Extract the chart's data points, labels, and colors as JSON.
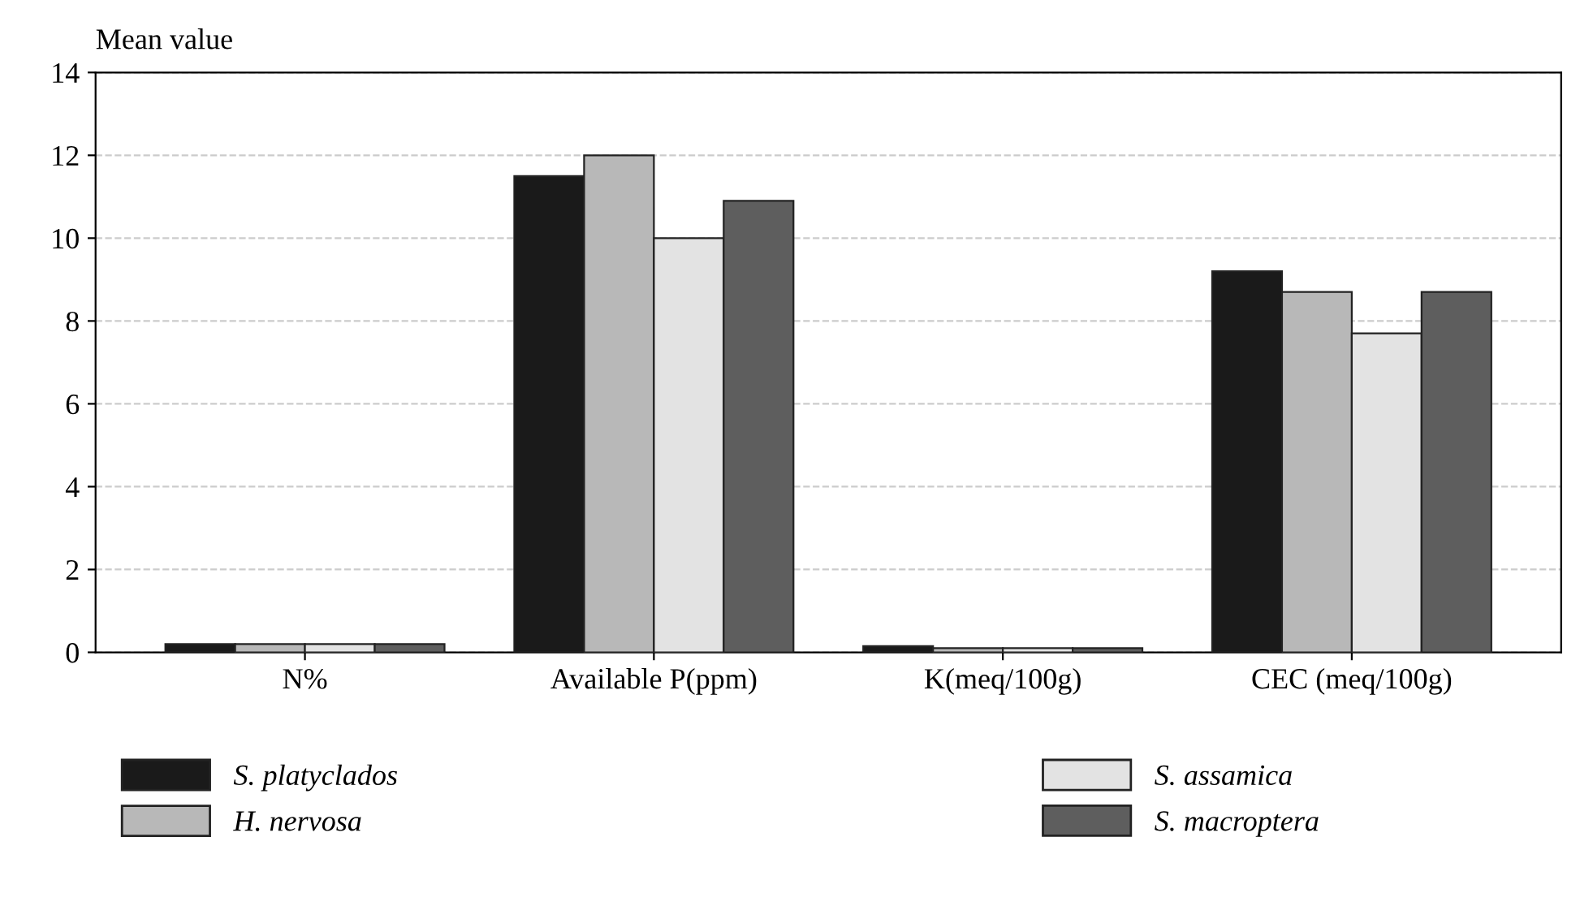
{
  "chart_data": {
    "type": "bar",
    "ylabel": "Mean value",
    "categories": [
      "N%",
      "Available P(ppm)",
      "K(meq/100g)",
      "CEC (meq/100g)"
    ],
    "series": [
      {
        "name": "S. platyclados",
        "color": "#1a1a1a",
        "values": [
          0.2,
          11.5,
          0.15,
          9.2
        ]
      },
      {
        "name": "H. nervosa",
        "color": "#b8b8b8",
        "values": [
          0.2,
          12.0,
          0.1,
          8.7
        ]
      },
      {
        "name": "S. assamica",
        "color": "#e3e3e3",
        "values": [
          0.2,
          10.0,
          0.1,
          7.7
        ]
      },
      {
        "name": "S. macroptera",
        "color": "#5e5e5e",
        "values": [
          0.2,
          10.9,
          0.1,
          8.7
        ]
      }
    ],
    "ylim": [
      0,
      14
    ],
    "yticks": [
      0,
      2,
      4,
      6,
      8,
      10,
      12,
      14
    ],
    "grid": "y",
    "legend": "bottom"
  }
}
